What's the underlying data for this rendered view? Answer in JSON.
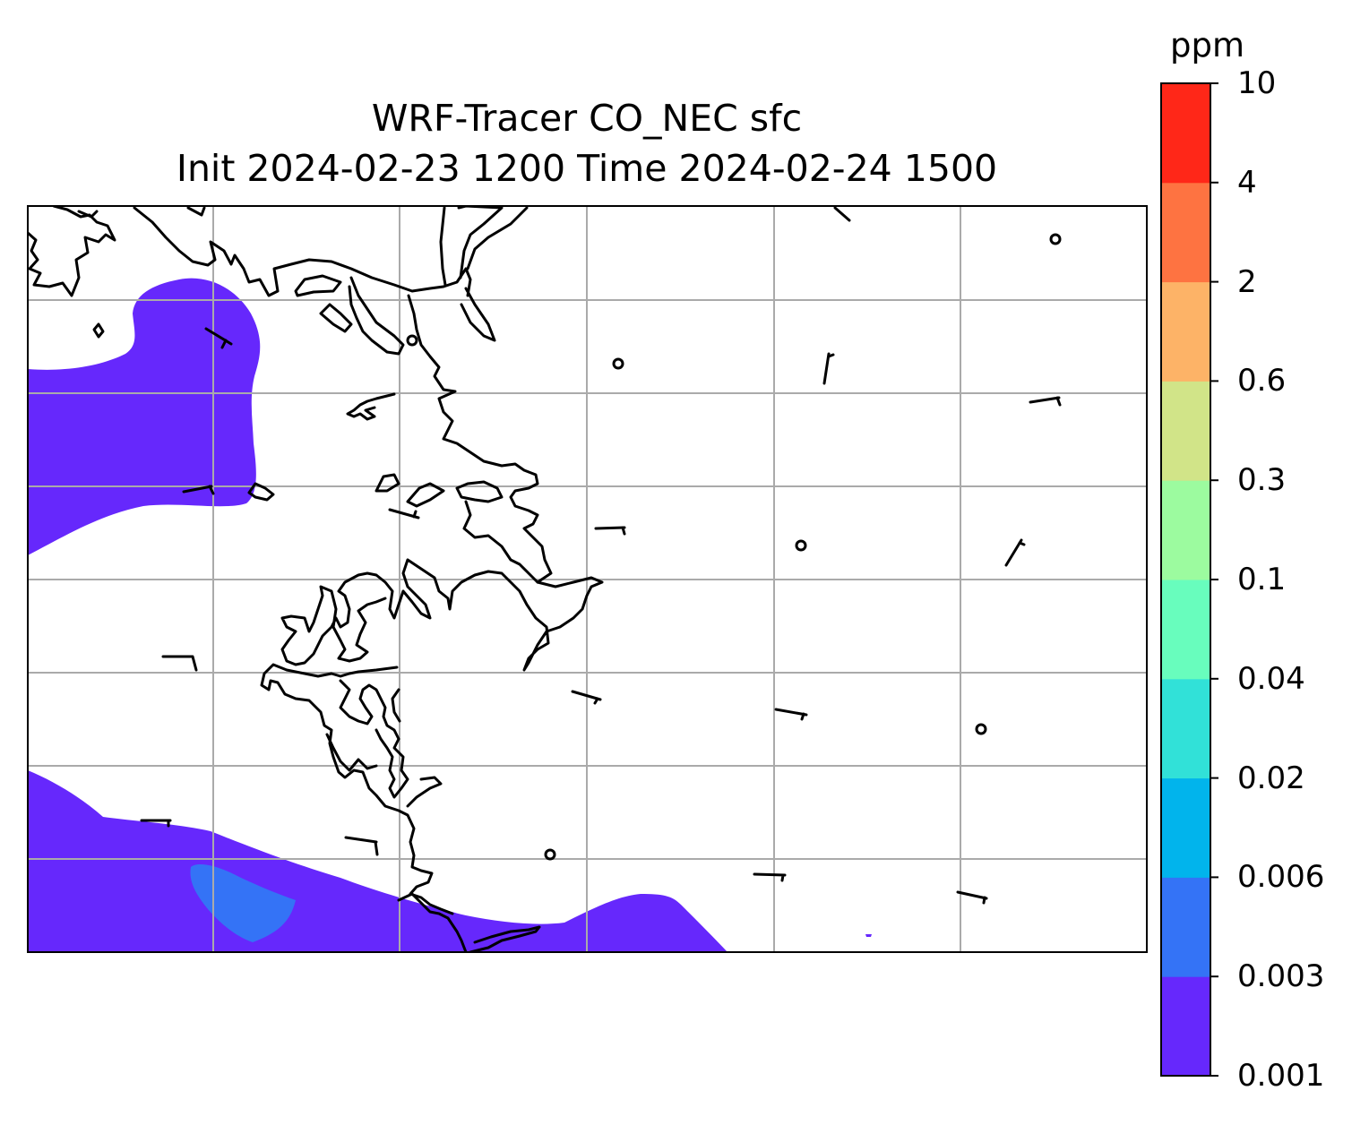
{
  "title": {
    "line1": "WRF-Tracer CO_NEC sfc",
    "line2": "Init 2024-02-23 1200 Time 2024-02-24 1500"
  },
  "colorbar": {
    "units": "ppm",
    "levels": [
      "0.001",
      "0.003",
      "0.006",
      "0.02",
      "0.04",
      "0.1",
      "0.3",
      "0.6",
      "2",
      "4",
      "10"
    ],
    "colors": [
      "#6628fc",
      "#3473f6",
      "#01b4ec",
      "#31e1d8",
      "#68fdbd",
      "#9cfb9f",
      "#d1e488",
      "#fdb367",
      "#fe7341",
      "#ff2718"
    ]
  },
  "map": {
    "plume_colors": {
      "band_0.001_0.003": "#6628fc",
      "band_0.003_0.006": "#3473f6"
    },
    "coastline_color": "#000000",
    "gridline_color": "#aaaaaa"
  }
}
